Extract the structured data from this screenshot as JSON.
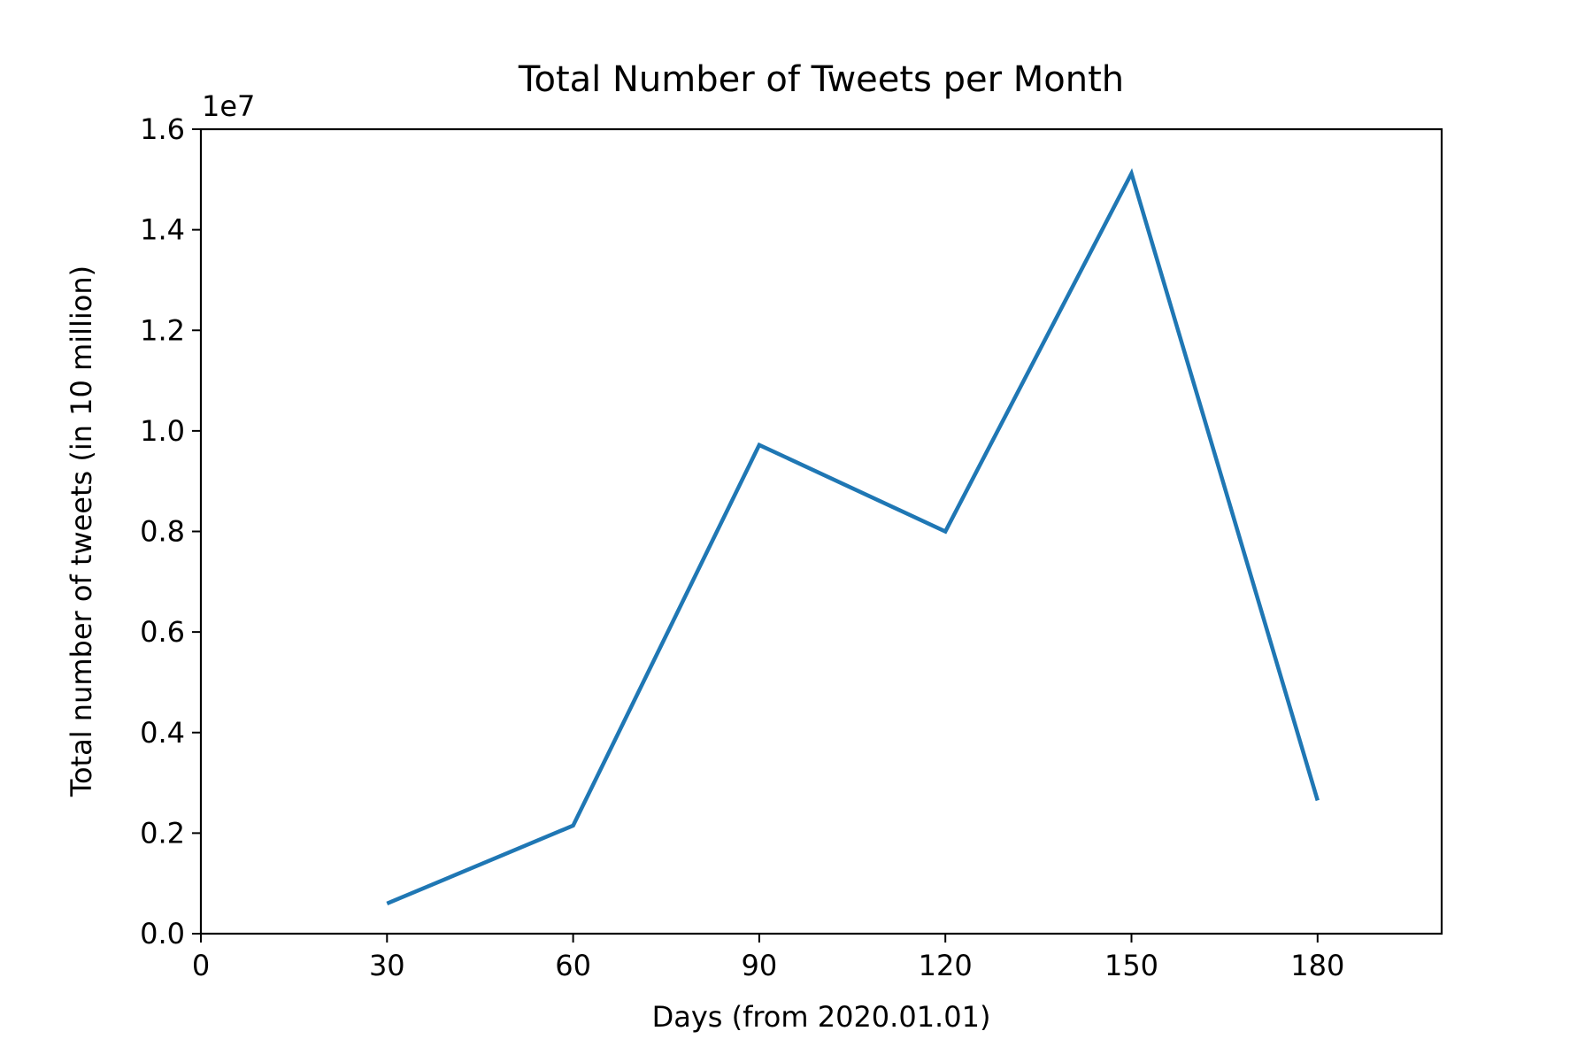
{
  "chart_data": {
    "type": "line",
    "title": "Total Number of Tweets per Month",
    "xlabel": "Days (from 2020.01.01)",
    "ylabel": "Total number of tweets (in 10 million)",
    "y_offset_label": "1e7",
    "xlim": [
      0,
      200
    ],
    "ylim": [
      0,
      1.6
    ],
    "x_ticks": [
      0,
      30,
      60,
      90,
      120,
      150,
      180
    ],
    "x_tick_labels": [
      "0",
      "30",
      "60",
      "90",
      "120",
      "150",
      "180"
    ],
    "y_ticks": [
      0.0,
      0.2,
      0.4,
      0.6,
      0.8,
      1.0,
      1.2,
      1.4,
      1.6
    ],
    "y_tick_labels": [
      "0.0",
      "0.2",
      "0.4",
      "0.6",
      "0.8",
      "1.0",
      "1.2",
      "1.4",
      "1.6"
    ],
    "grid": false,
    "series": [
      {
        "x": [
          30,
          60,
          90,
          120,
          150,
          180
        ],
        "y": [
          0.06,
          0.215,
          0.972,
          0.8,
          1.512,
          0.265
        ],
        "color": "#1f77b4"
      }
    ]
  }
}
